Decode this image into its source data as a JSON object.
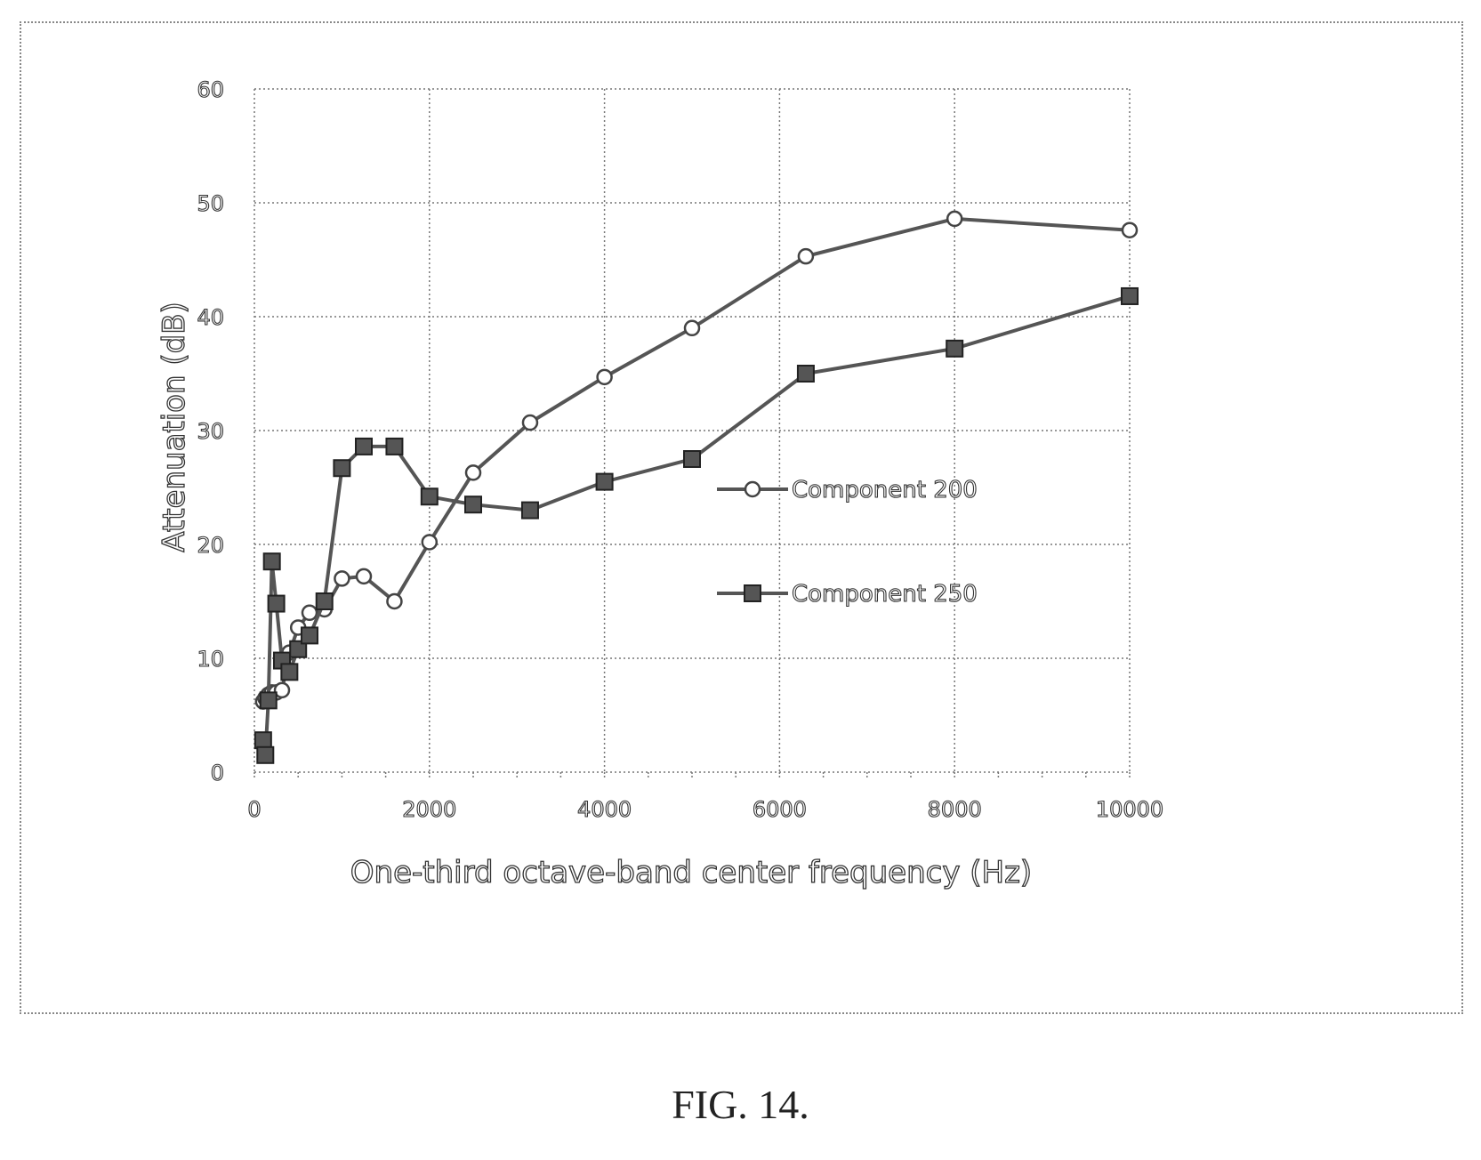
{
  "figure": {
    "caption": "FIG. 14."
  },
  "chart_data": {
    "type": "line",
    "title": "",
    "xlabel": "One-third octave-band center frequency (Hz)",
    "ylabel": "Attenuation (dB)",
    "xlim": [
      0,
      10000
    ],
    "ylim": [
      0,
      60
    ],
    "xticks": [
      0,
      2000,
      4000,
      6000,
      8000,
      10000
    ],
    "yticks": [
      0,
      10,
      20,
      30,
      40,
      50,
      60
    ],
    "grid": true,
    "legend_position": "right-middle",
    "series": [
      {
        "name": "Component 200",
        "marker": "open-circle",
        "x": [
          100,
          125,
          160,
          200,
          250,
          315,
          400,
          500,
          630,
          800,
          1000,
          1250,
          1600,
          2000,
          2500,
          3150,
          4000,
          5000,
          6300,
          8000,
          10000
        ],
        "y": [
          6.2,
          6.5,
          6.8,
          7.0,
          7.0,
          7.2,
          10.5,
          12.7,
          14.0,
          14.3,
          17.0,
          17.2,
          15.0,
          20.2,
          26.3,
          30.7,
          34.7,
          39.0,
          45.3,
          48.6,
          47.6
        ]
      },
      {
        "name": "Component 250",
        "marker": "filled-square",
        "x": [
          100,
          125,
          160,
          200,
          250,
          315,
          400,
          500,
          630,
          800,
          1000,
          1250,
          1600,
          2000,
          2500,
          3150,
          4000,
          5000,
          6300,
          8000,
          10000
        ],
        "y": [
          2.8,
          1.5,
          6.3,
          18.5,
          14.8,
          9.8,
          8.8,
          10.8,
          12.0,
          15.0,
          26.7,
          28.6,
          28.6,
          24.2,
          23.5,
          23.0,
          25.5,
          27.5,
          35.0,
          37.2,
          41.8
        ]
      }
    ]
  }
}
